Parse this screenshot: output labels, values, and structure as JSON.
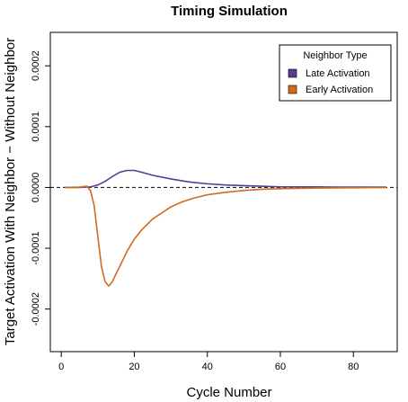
{
  "chart_data": {
    "type": "line",
    "title": "Timing Simulation",
    "xlabel": "Cycle Number",
    "ylabel": "Target Activation With Neighbor − Without Neighbor",
    "xlim": [
      -3,
      92
    ],
    "ylim": [
      -0.00027,
      0.000255
    ],
    "x_ticks": [
      0,
      20,
      40,
      60,
      80
    ],
    "x_tick_labels": [
      "0",
      "20",
      "40",
      "60",
      "80"
    ],
    "y_ticks": [
      -0.0002,
      -0.0001,
      0.0,
      0.0001,
      0.0002
    ],
    "y_tick_labels": [
      "-0.0002",
      "-0.0001",
      "0.0000",
      "0.0001",
      "0.0002"
    ],
    "reference_line": {
      "y": 0,
      "style": "dashed"
    },
    "legend": {
      "title": "Neighbor Type",
      "placement": "top-right"
    },
    "series": [
      {
        "name": "Late Activation",
        "color": "#5b3b93",
        "x": [
          1,
          5,
          8,
          10,
          12,
          14,
          16,
          18,
          20,
          22,
          25,
          30,
          35,
          40,
          45,
          50,
          55,
          60,
          65,
          70,
          75,
          80,
          85,
          89
        ],
        "y": [
          0,
          0,
          1e-06,
          4e-06,
          1e-05,
          1.8e-05,
          2.5e-05,
          2.8e-05,
          2.8e-05,
          2.5e-05,
          2e-05,
          1.4e-05,
          9e-06,
          6e-06,
          4e-06,
          3e-06,
          2e-06,
          1e-06,
          1e-06,
          1e-06,
          5e-07,
          5e-07,
          5e-07,
          5e-07
        ]
      },
      {
        "name": "Early Activation",
        "color": "#d2691e",
        "x": [
          1,
          5,
          7,
          8,
          9,
          10,
          11,
          12,
          13,
          14,
          15,
          16,
          18,
          20,
          22,
          25,
          28,
          30,
          33,
          36,
          40,
          45,
          50,
          55,
          60,
          65,
          70,
          75,
          80,
          85,
          89
        ],
        "y": [
          0,
          5e-07,
          2e-06,
          -5e-06,
          -3e-05,
          -8e-05,
          -0.00013,
          -0.000155,
          -0.000162,
          -0.000155,
          -0.000142,
          -0.00013,
          -0.000105,
          -8.5e-05,
          -7e-05,
          -5.2e-05,
          -4e-05,
          -3.2e-05,
          -2.4e-05,
          -1.8e-05,
          -1.2e-05,
          -8e-06,
          -5e-06,
          -3e-06,
          -2e-06,
          -1.5e-06,
          -1e-06,
          -7e-07,
          -5e-07,
          -3e-07,
          -2e-07
        ]
      }
    ]
  }
}
